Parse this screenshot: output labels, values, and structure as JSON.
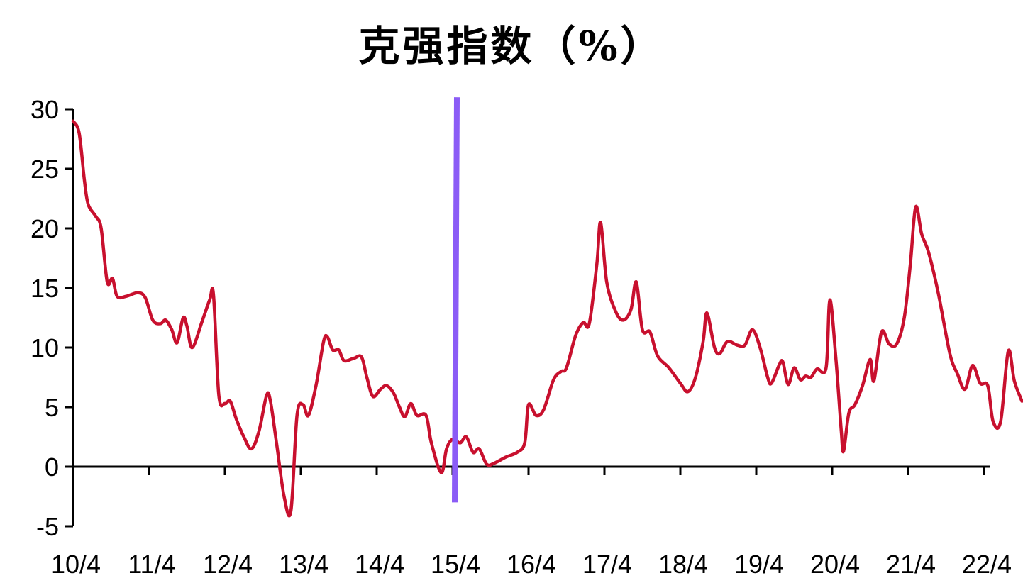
{
  "chart_data": {
    "type": "line",
    "title": "克强指数（%）",
    "xlabel": "",
    "ylabel": "",
    "ylim": [
      -5,
      30
    ],
    "yticks": [
      30,
      25,
      20,
      15,
      10,
      5,
      0,
      -5
    ],
    "xticks": [
      "10/4",
      "11/4",
      "12/4",
      "13/4",
      "14/4",
      "15/4",
      "16/4",
      "17/4",
      "18/4",
      "19/4",
      "20/4",
      "21/4",
      "22/4"
    ],
    "grid": false,
    "legend": null,
    "annotations": [
      {
        "type": "vertical-line",
        "x": "15/4",
        "color": "#8b5cf6",
        "ymin": -3,
        "ymax": 31
      }
    ],
    "series": [
      {
        "name": "克强指数",
        "color": "#c8102e",
        "points": [
          [
            0.0,
            29.0
          ],
          [
            0.08,
            28.0
          ],
          [
            0.15,
            24.0
          ],
          [
            0.2,
            22.0
          ],
          [
            0.3,
            21.0
          ],
          [
            0.37,
            20.0
          ],
          [
            0.45,
            15.5
          ],
          [
            0.52,
            15.8
          ],
          [
            0.58,
            14.3
          ],
          [
            0.7,
            14.3
          ],
          [
            0.85,
            14.6
          ],
          [
            0.95,
            14.2
          ],
          [
            1.05,
            12.3
          ],
          [
            1.15,
            12.0
          ],
          [
            1.22,
            12.3
          ],
          [
            1.3,
            11.5
          ],
          [
            1.37,
            10.4
          ],
          [
            1.45,
            12.5
          ],
          [
            1.5,
            11.8
          ],
          [
            1.57,
            10.0
          ],
          [
            1.7,
            12.2
          ],
          [
            1.8,
            14.0
          ],
          [
            1.85,
            14.4
          ],
          [
            1.92,
            6.0
          ],
          [
            2.0,
            5.3
          ],
          [
            2.07,
            5.5
          ],
          [
            2.15,
            4.0
          ],
          [
            2.25,
            2.5
          ],
          [
            2.35,
            1.5
          ],
          [
            2.45,
            3.0
          ],
          [
            2.55,
            6.0
          ],
          [
            2.6,
            5.5
          ],
          [
            2.68,
            2.0
          ],
          [
            2.78,
            -2.5
          ],
          [
            2.87,
            -3.7
          ],
          [
            2.95,
            4.3
          ],
          [
            3.03,
            5.2
          ],
          [
            3.1,
            4.3
          ],
          [
            3.2,
            6.8
          ],
          [
            3.3,
            10.5
          ],
          [
            3.35,
            10.9
          ],
          [
            3.42,
            9.8
          ],
          [
            3.5,
            9.8
          ],
          [
            3.57,
            8.9
          ],
          [
            3.7,
            9.1
          ],
          [
            3.8,
            9.2
          ],
          [
            3.87,
            7.5
          ],
          [
            3.95,
            5.9
          ],
          [
            4.05,
            6.5
          ],
          [
            4.13,
            6.8
          ],
          [
            4.22,
            6.2
          ],
          [
            4.3,
            5.0
          ],
          [
            4.37,
            4.2
          ],
          [
            4.45,
            5.3
          ],
          [
            4.53,
            4.3
          ],
          [
            4.65,
            4.3
          ],
          [
            4.72,
            2.0
          ],
          [
            4.85,
            -0.5
          ],
          [
            4.92,
            1.5
          ],
          [
            5.0,
            2.3
          ],
          [
            5.1,
            2.0
          ],
          [
            5.18,
            2.5
          ],
          [
            5.27,
            1.2
          ],
          [
            5.35,
            1.5
          ],
          [
            5.45,
            0.2
          ],
          [
            5.55,
            0.3
          ],
          [
            5.7,
            0.8
          ],
          [
            5.85,
            1.2
          ],
          [
            5.95,
            2.0
          ],
          [
            6.0,
            5.2
          ],
          [
            6.1,
            4.3
          ],
          [
            6.2,
            4.8
          ],
          [
            6.33,
            7.3
          ],
          [
            6.43,
            8.0
          ],
          [
            6.5,
            8.3
          ],
          [
            6.62,
            11.0
          ],
          [
            6.72,
            12.1
          ],
          [
            6.8,
            12.0
          ],
          [
            6.9,
            17.0
          ],
          [
            6.95,
            20.5
          ],
          [
            7.03,
            15.5
          ],
          [
            7.15,
            13.0
          ],
          [
            7.25,
            12.3
          ],
          [
            7.35,
            13.2
          ],
          [
            7.42,
            15.5
          ],
          [
            7.5,
            11.5
          ],
          [
            7.6,
            11.3
          ],
          [
            7.7,
            9.3
          ],
          [
            7.85,
            8.3
          ],
          [
            8.0,
            7.0
          ],
          [
            8.1,
            6.3
          ],
          [
            8.2,
            7.5
          ],
          [
            8.3,
            10.5
          ],
          [
            8.35,
            12.9
          ],
          [
            8.45,
            10.0
          ],
          [
            8.52,
            9.5
          ],
          [
            8.62,
            10.5
          ],
          [
            8.75,
            10.2
          ],
          [
            8.85,
            10.2
          ],
          [
            8.95,
            11.5
          ],
          [
            9.05,
            10.0
          ],
          [
            9.15,
            7.5
          ],
          [
            9.2,
            7.0
          ],
          [
            9.3,
            8.5
          ],
          [
            9.35,
            8.8
          ],
          [
            9.42,
            6.9
          ],
          [
            9.5,
            8.3
          ],
          [
            9.58,
            7.3
          ],
          [
            9.65,
            7.6
          ],
          [
            9.72,
            7.5
          ],
          [
            9.8,
            8.2
          ],
          [
            9.92,
            8.3
          ],
          [
            9.97,
            14.0
          ],
          [
            10.05,
            9.0
          ],
          [
            10.12,
            3.0
          ],
          [
            10.15,
            1.3
          ],
          [
            10.22,
            4.5
          ],
          [
            10.3,
            5.2
          ],
          [
            10.4,
            6.8
          ],
          [
            10.5,
            9.0
          ],
          [
            10.55,
            7.2
          ],
          [
            10.65,
            11.3
          ],
          [
            10.75,
            10.3
          ],
          [
            10.85,
            10.3
          ],
          [
            10.95,
            12.5
          ],
          [
            11.03,
            17.0
          ],
          [
            11.1,
            21.8
          ],
          [
            11.18,
            19.5
          ],
          [
            11.27,
            18.0
          ],
          [
            11.4,
            14.5
          ],
          [
            11.55,
            9.5
          ],
          [
            11.65,
            7.8
          ],
          [
            11.75,
            6.5
          ],
          [
            11.85,
            8.5
          ],
          [
            11.95,
            7.0
          ],
          [
            12.05,
            6.8
          ],
          [
            12.12,
            3.8
          ],
          [
            12.22,
            3.8
          ],
          [
            12.32,
            9.7
          ],
          [
            12.4,
            7.2
          ],
          [
            12.5,
            5.5
          ]
        ]
      }
    ]
  }
}
